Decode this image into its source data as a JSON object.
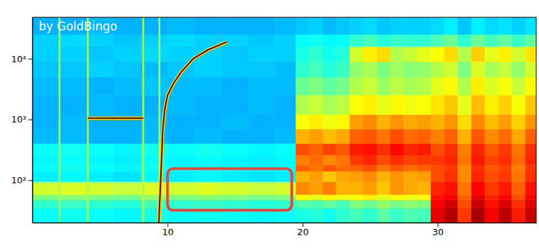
{
  "chart_data": {
    "type": "heatmap",
    "log": "y",
    "xlim": [
      0,
      37.3
    ],
    "ylim": [
      20,
      48000
    ],
    "xticks": [
      10,
      20,
      30
    ],
    "yticks": [
      {
        "value": 100,
        "label": "10²"
      },
      {
        "value": 1000,
        "label": "10³"
      },
      {
        "value": 10000,
        "label": "10⁴"
      }
    ],
    "zlim": [
      0,
      100
    ],
    "x_edges": [
      0,
      2,
      4,
      6,
      8,
      10,
      12,
      14,
      16,
      18,
      19.5,
      20.5,
      21.5,
      22.5,
      23.5,
      24.5,
      25.5,
      26.5,
      27.5,
      28.5,
      29.5,
      30.5,
      31.5,
      32.5,
      33.5,
      34.5,
      35.5,
      36.5,
      37.3
    ],
    "y_edges": [
      20,
      35,
      48,
      58,
      95,
      140,
      180,
      260,
      400,
      700,
      1200,
      2500,
      5000,
      9000,
      16000,
      25000,
      48000
    ],
    "cells": [
      [
        38,
        39,
        38,
        37,
        40,
        38,
        39,
        38,
        37,
        38,
        40,
        41,
        39,
        42,
        44,
        42,
        46,
        43,
        45,
        44,
        90,
        95,
        82,
        96,
        88,
        94,
        85,
        93
      ],
      [
        42,
        43,
        42,
        41,
        44,
        42,
        43,
        42,
        41,
        42,
        46,
        45,
        47,
        44,
        50,
        48,
        52,
        49,
        51,
        50,
        88,
        92,
        80,
        93,
        86,
        91,
        83,
        90
      ],
      [
        50,
        51,
        50,
        49,
        52,
        50,
        51,
        50,
        49,
        50,
        62,
        60,
        63,
        61,
        62,
        64,
        60,
        63,
        61,
        62,
        86,
        88,
        78,
        90,
        84,
        87,
        80,
        88
      ],
      [
        58,
        59,
        58,
        57,
        59,
        58,
        59,
        58,
        57,
        58,
        74,
        72,
        75,
        70,
        70,
        72,
        68,
        73,
        71,
        70,
        84,
        86,
        76,
        88,
        82,
        85,
        78,
        86
      ],
      [
        36,
        37,
        36,
        35,
        37,
        36,
        37,
        36,
        35,
        36,
        70,
        72,
        68,
        71,
        72,
        74,
        70,
        73,
        71,
        72,
        80,
        83,
        74,
        84,
        80,
        82,
        76,
        83
      ],
      [
        38,
        39,
        38,
        37,
        39,
        38,
        39,
        38,
        37,
        38,
        78,
        76,
        79,
        77,
        78,
        80,
        76,
        79,
        77,
        78,
        80,
        82,
        74,
        83,
        79,
        81,
        75,
        82
      ],
      [
        37,
        38,
        37,
        36,
        38,
        37,
        38,
        37,
        36,
        37,
        75,
        77,
        74,
        76,
        82,
        84,
        80,
        83,
        81,
        82,
        82,
        84,
        76,
        85,
        81,
        83,
        77,
        84
      ],
      [
        38,
        39,
        38,
        37,
        39,
        38,
        39,
        38,
        37,
        38,
        80,
        78,
        81,
        79,
        85,
        86,
        83,
        87,
        84,
        85,
        80,
        83,
        75,
        84,
        79,
        82,
        76,
        83
      ],
      [
        31,
        31,
        30,
        30,
        31,
        30,
        31,
        30,
        30,
        31,
        70,
        72,
        69,
        71,
        78,
        79,
        76,
        80,
        77,
        78,
        75,
        78,
        70,
        79,
        74,
        77,
        71,
        78
      ],
      [
        30,
        31,
        30,
        30,
        31,
        30,
        30,
        31,
        30,
        30,
        62,
        64,
        61,
        63,
        72,
        74,
        70,
        73,
        71,
        72,
        70,
        73,
        66,
        74,
        69,
        72,
        67,
        73
      ],
      [
        30,
        30,
        31,
        30,
        30,
        31,
        30,
        30,
        31,
        30,
        55,
        57,
        54,
        56,
        62,
        64,
        60,
        63,
        61,
        62,
        65,
        68,
        60,
        69,
        64,
        67,
        62,
        68
      ],
      [
        31,
        31,
        30,
        31,
        32,
        31,
        31,
        30,
        31,
        31,
        48,
        50,
        47,
        49,
        55,
        57,
        53,
        56,
        54,
        55,
        60,
        63,
        55,
        64,
        59,
        62,
        57,
        63
      ],
      [
        32,
        32,
        33,
        32,
        31,
        32,
        33,
        32,
        32,
        31,
        42,
        44,
        41,
        43,
        52,
        54,
        50,
        53,
        51,
        52,
        55,
        58,
        50,
        59,
        54,
        57,
        52,
        58
      ],
      [
        33,
        33,
        32,
        33,
        34,
        33,
        33,
        32,
        33,
        33,
        40,
        42,
        39,
        41,
        58,
        64,
        66,
        55,
        57,
        60,
        62,
        66,
        55,
        67,
        60,
        64,
        58,
        65
      ],
      [
        33,
        34,
        33,
        32,
        33,
        34,
        33,
        33,
        32,
        33,
        38,
        39,
        37,
        38,
        42,
        44,
        41,
        43,
        42,
        42,
        45,
        48,
        42,
        48,
        44,
        47,
        43,
        47
      ],
      [
        30,
        30,
        31,
        30,
        30,
        31,
        30,
        30,
        30,
        31,
        32,
        33,
        31,
        32,
        33,
        34,
        32,
        33,
        33,
        33,
        34,
        36,
        32,
        36,
        34,
        35,
        33,
        35
      ]
    ],
    "clicks": {
      "x": [
        2.0,
        4.1,
        8.2,
        9.4
      ],
      "color": "#a8ff50"
    },
    "tones": [
      {
        "x": [
          4.1,
          8.2
        ],
        "y": [
          1050,
          1050
        ],
        "color": "#5a0000"
      },
      {
        "x": [
          9.35,
          9.45,
          9.55,
          9.65,
          9.8,
          10.0,
          10.4,
          11.0,
          11.9,
          13.0,
          14.4
        ],
        "y": [
          20,
          60,
          200,
          700,
          1500,
          2500,
          3800,
          6000,
          10000,
          14000,
          19000
        ],
        "color": "#5a0000"
      }
    ],
    "highlight": {
      "x": [
        10,
        19.2
      ],
      "y": [
        32,
        155
      ],
      "color": "#e8463c"
    },
    "annotations": [
      {
        "text": "by GoldBingo"
      }
    ]
  }
}
